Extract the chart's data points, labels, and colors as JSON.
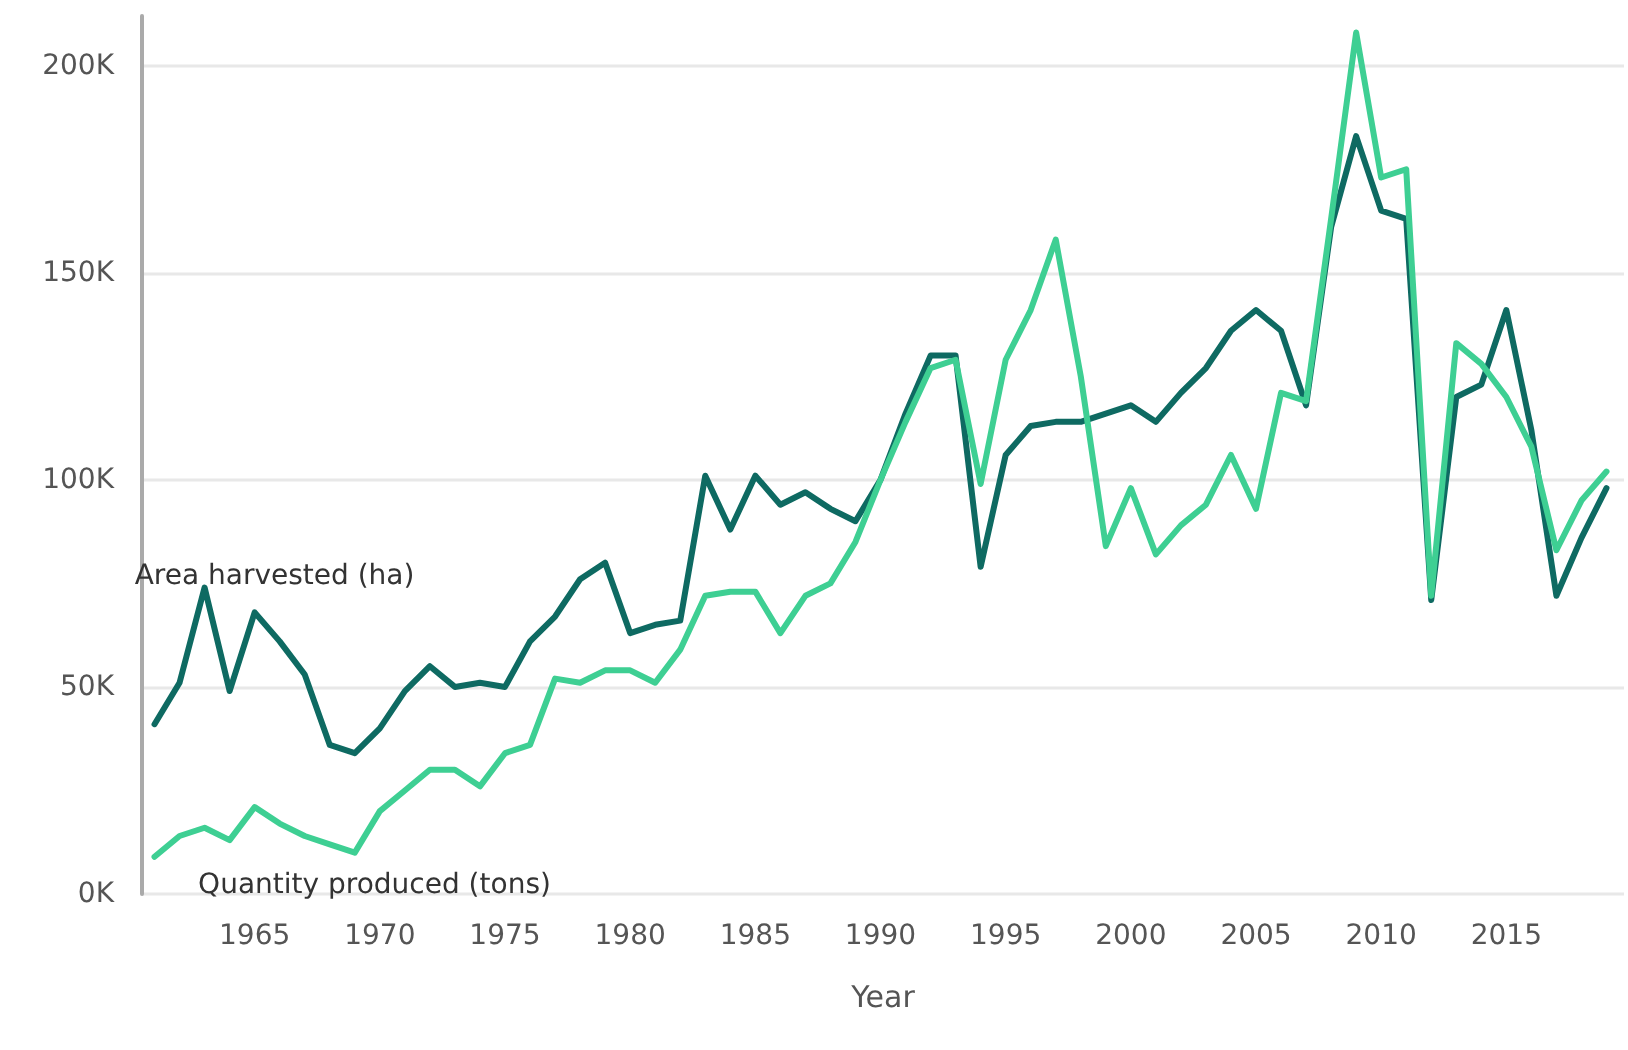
{
  "chart_data": {
    "type": "line",
    "xlabel": "Year",
    "x": [
      1961,
      1962,
      1963,
      1964,
      1965,
      1966,
      1967,
      1968,
      1969,
      1970,
      1971,
      1972,
      1973,
      1974,
      1975,
      1976,
      1977,
      1978,
      1979,
      1980,
      1981,
      1982,
      1983,
      1984,
      1985,
      1986,
      1987,
      1988,
      1989,
      1990,
      1991,
      1992,
      1993,
      1994,
      1995,
      1996,
      1997,
      1998,
      1999,
      2000,
      2001,
      2002,
      2003,
      2004,
      2005,
      2006,
      2007,
      2008,
      2009,
      2010,
      2011,
      2012,
      2013,
      2014,
      2015,
      2016,
      2017,
      2018,
      2019
    ],
    "series": [
      {
        "name": "Area harvested (ha)",
        "color": "#0e6a62",
        "values": [
          41000,
          51000,
          74000,
          49000,
          68000,
          61000,
          53000,
          36000,
          34000,
          40000,
          49000,
          55000,
          50000,
          51000,
          50000,
          61000,
          67000,
          76000,
          80000,
          63000,
          65000,
          66000,
          101000,
          88000,
          101000,
          94000,
          97000,
          93000,
          90000,
          100000,
          116000,
          130000,
          130000,
          79000,
          106000,
          113000,
          114000,
          114000,
          116000,
          118000,
          114000,
          121000,
          127000,
          136000,
          141000,
          136000,
          118000,
          161000,
          183000,
          165000,
          163000,
          71000,
          120000,
          123000,
          141000,
          112000,
          72000,
          86000,
          98000
        ]
      },
      {
        "name": "Quantity produced (tons)",
        "color": "#3ecf93",
        "values": [
          9000,
          14000,
          16000,
          13000,
          21000,
          17000,
          14000,
          12000,
          10000,
          20000,
          25000,
          30000,
          30000,
          26000,
          34000,
          36000,
          52000,
          51000,
          54000,
          54000,
          51000,
          59000,
          72000,
          73000,
          73000,
          63000,
          72000,
          75000,
          85000,
          100000,
          114000,
          127000,
          129000,
          99000,
          129000,
          141000,
          158000,
          125000,
          84000,
          98000,
          82000,
          89000,
          94000,
          106000,
          93000,
          121000,
          119000,
          163000,
          208000,
          173000,
          175000,
          72000,
          133000,
          128000,
          120000,
          108000,
          83000,
          95000,
          102000
        ]
      }
    ],
    "xlim": [
      1960.5,
      2019.7
    ],
    "xticks": [
      1965,
      1970,
      1975,
      1980,
      1985,
      1990,
      1995,
      2000,
      2005,
      2010,
      2015
    ],
    "ylim": [
      0,
      212000
    ],
    "yticks": [
      {
        "value": 0,
        "label": "0K"
      },
      {
        "value": 50000,
        "label": "50K"
      },
      {
        "value": 100000,
        "label": "100K"
      },
      {
        "value": 150000,
        "label": "150K"
      },
      {
        "value": 200000,
        "label": "200K"
      }
    ],
    "grid": "y",
    "legend": false,
    "marker": "none",
    "line_style": "solid"
  }
}
